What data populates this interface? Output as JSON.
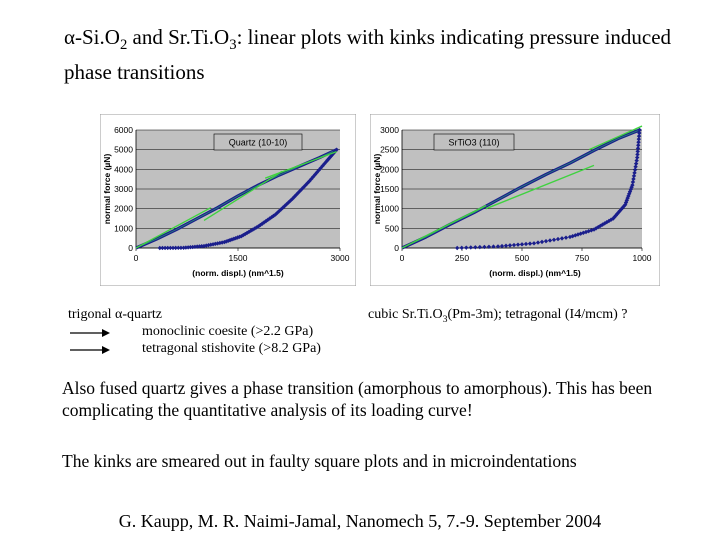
{
  "slide": {
    "title_parts": [
      "α-Si.O",
      "2",
      " and Sr.Ti.O",
      "3",
      ": linear plots with kinks indicating pressure induced phase transitions"
    ],
    "left_note": {
      "line1": "trigonal α-quartz",
      "line2": "monoclinic coesite (>2.2 GPa)",
      "line3": "tetragonal stishovite (>8.2 GPa)"
    },
    "right_note_parts": [
      "cubic Sr.Ti.O",
      "3",
      "(Pm-3m); tetragonal (I4/mcm) ?"
    ],
    "paragraph1": "Also fused quartz gives a phase transition (amorphous to amorphous). This has been complicating the quantitative analysis of its loading curve!",
    "paragraph2": "The kinks are smeared out in faulty square plots and in microindentations",
    "footer": "G. Kaupp, M. R. Naimi-Jamal, Nanomech 5, 7.-9. September 2004"
  },
  "colors": {
    "plot_bg": "#c0c0c0",
    "load": "#1a1e8c",
    "unload": "#1a1e8c",
    "fit": "#3fd23f"
  },
  "chart_data": [
    {
      "type": "scatter",
      "legend": "Quartz (10-10)",
      "xlabel": "(norm. displ.) (nm^1.5)",
      "ylabel": "normal force (µN)",
      "xlim": [
        0,
        3000
      ],
      "ylim": [
        0,
        6000
      ],
      "xticks": [
        0,
        1500,
        3000
      ],
      "yticks": [
        0,
        1000,
        2000,
        3000,
        4000,
        5000,
        6000
      ],
      "series": [
        {
          "x": [
            0,
            300,
            600,
            900,
            1200,
            1500,
            1800,
            2100,
            2400,
            2700,
            2950
          ],
          "y": [
            0,
            450,
            950,
            1500,
            2050,
            2650,
            3200,
            3700,
            4150,
            4600,
            5000
          ]
        },
        {
          "x": [
            350,
            700,
            1000,
            1300,
            1550,
            1800,
            2050,
            2300,
            2550,
            2800,
            2950
          ],
          "y": [
            0,
            10,
            100,
            300,
            600,
            1100,
            1700,
            2500,
            3400,
            4400,
            5000
          ]
        }
      ],
      "fit_lines": [
        {
          "x": [
            0,
            1100
          ],
          "y": [
            0,
            2050
          ]
        },
        {
          "x": [
            1000,
            2150
          ],
          "y": [
            1400,
            3900
          ]
        },
        {
          "x": [
            1900,
            2950
          ],
          "y": [
            3550,
            4900
          ]
        }
      ]
    },
    {
      "type": "scatter",
      "legend": "SrTiO3 (110)",
      "xlabel": "(norm. displ.) (nm^1.5)",
      "ylabel": "normal force (µN)",
      "xlim": [
        0,
        1000
      ],
      "ylim": [
        0,
        3000
      ],
      "xticks": [
        0,
        250,
        500,
        750,
        1000
      ],
      "yticks": [
        0,
        500,
        1000,
        1500,
        2000,
        2500,
        3000
      ],
      "series": [
        {
          "x": [
            0,
            100,
            200,
            300,
            400,
            500,
            600,
            700,
            800,
            900,
            990
          ],
          "y": [
            0,
            280,
            600,
            900,
            1230,
            1560,
            1870,
            2160,
            2480,
            2780,
            3000
          ]
        },
        {
          "x": [
            230,
            400,
            550,
            700,
            800,
            880,
            930,
            960,
            980,
            990
          ],
          "y": [
            0,
            40,
            120,
            280,
            470,
            750,
            1100,
            1600,
            2300,
            3000
          ]
        }
      ],
      "fit_lines": [
        {
          "x": [
            0,
            350
          ],
          "y": [
            0,
            1080
          ]
        },
        {
          "x": [
            350,
            800
          ],
          "y": [
            1000,
            2100
          ]
        },
        {
          "x": [
            780,
            1000
          ],
          "y": [
            2500,
            3100
          ]
        }
      ]
    }
  ]
}
